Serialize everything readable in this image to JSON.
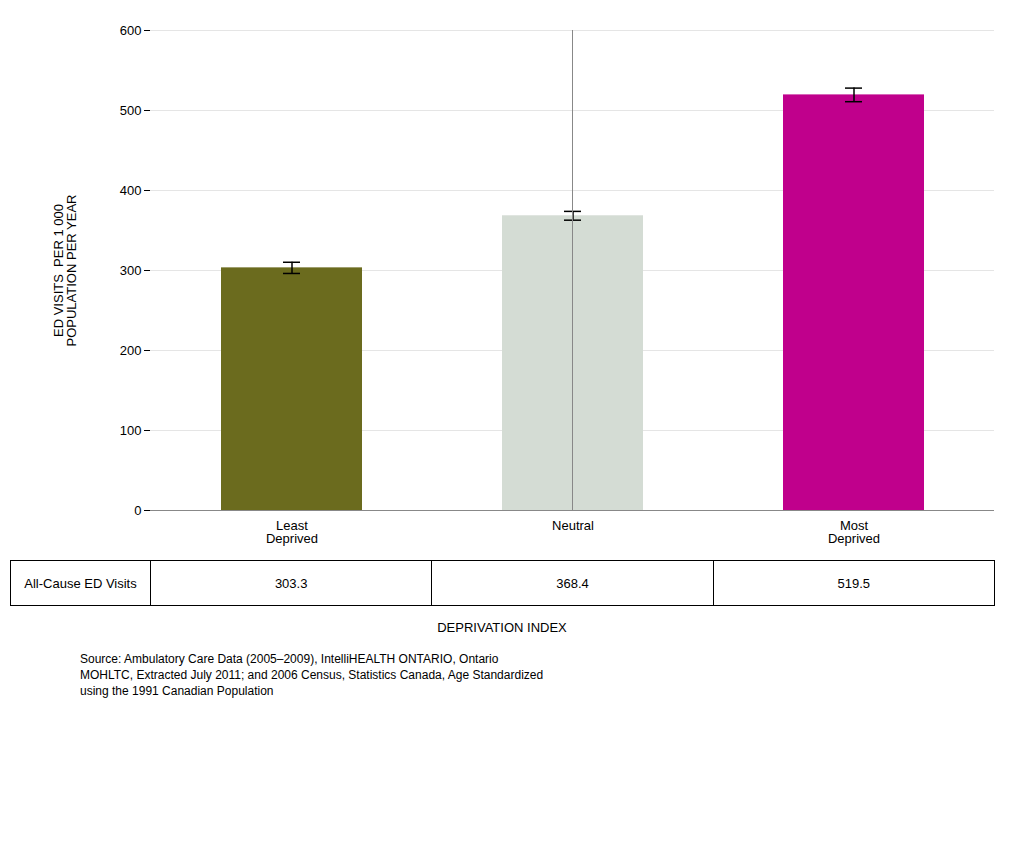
{
  "chart_data": {
    "type": "bar",
    "categories": [
      "Least\nDeprived",
      "Neutral",
      "Most\nDeprived"
    ],
    "values": [
      303.3,
      368.4,
      519.5
    ],
    "errors": [
      7.0,
      5.5,
      8.5
    ],
    "colors": [
      "#6b6b1e",
      "#d4dcd4",
      "#c0008c"
    ],
    "ylabel": "ED VISITS  PER 1 000\nPOPULATION PER YEAR",
    "xlabel": "DEPRIVATION INDEX",
    "ylim": [
      0,
      600
    ],
    "yticks": [
      0,
      100,
      200,
      300,
      400,
      500,
      600
    ],
    "grid": true,
    "table": {
      "row_label": "All-Cause ED Visits",
      "values": [
        "303.3",
        "368.4",
        "519.5"
      ]
    },
    "source": "Source: Ambulatory Care Data (2005–2009), IntelliHEALTH ONTARIO, Ontario\nMOHLTC, Extracted July 2011; and 2006 Census, Statistics Canada, Age Standardized\nusing the 1991 Canadian Population"
  }
}
